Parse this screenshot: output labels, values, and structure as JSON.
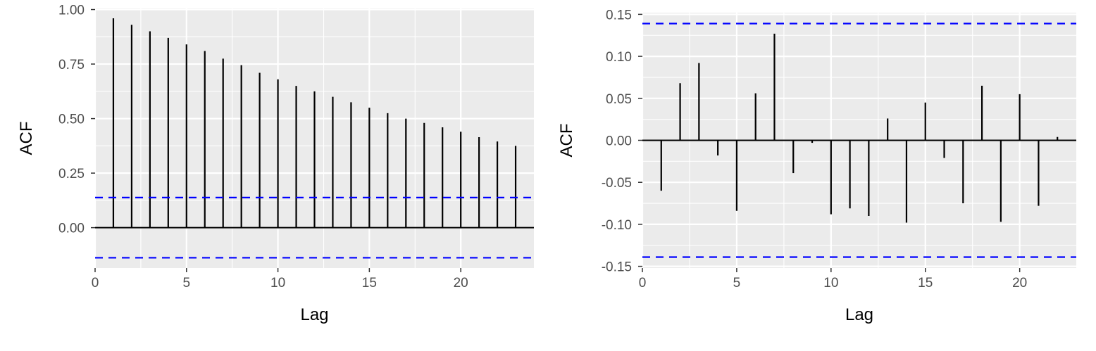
{
  "chart_data": [
    {
      "type": "bar",
      "subtype": "acf-lollipop",
      "title": "",
      "xlabel": "Lag",
      "ylabel": "ACF",
      "xlim": [
        0,
        24
      ],
      "ylim": [
        -0.185,
        1.005
      ],
      "xticks": [
        0,
        5,
        10,
        15,
        20
      ],
      "yticks": [
        0.0,
        0.25,
        0.5,
        0.75,
        1.0
      ],
      "ytick_labels": [
        "0.00",
        "0.25",
        "0.50",
        "0.75",
        "1.00"
      ],
      "confidence_bounds": [
        0.138,
        -0.138
      ],
      "series": [
        {
          "lags": [
            1,
            2,
            3,
            4,
            5,
            6,
            7,
            8,
            9,
            10,
            11,
            12,
            13,
            14,
            15,
            16,
            17,
            18,
            19,
            20,
            21,
            22,
            23
          ],
          "values": [
            0.96,
            0.93,
            0.9,
            0.87,
            0.84,
            0.81,
            0.775,
            0.745,
            0.71,
            0.68,
            0.65,
            0.625,
            0.6,
            0.575,
            0.55,
            0.525,
            0.5,
            0.48,
            0.46,
            0.44,
            0.415,
            0.395,
            0.375
          ]
        }
      ],
      "grid": true,
      "colors": {
        "panel": "#ebebeb",
        "grid": "#ffffff",
        "bars": "#000000",
        "bounds": "#0000ff"
      }
    },
    {
      "type": "bar",
      "subtype": "acf-lollipop",
      "title": "",
      "xlabel": "Lag",
      "ylabel": "ACF",
      "xlim": [
        0,
        23
      ],
      "ylim": [
        -0.152,
        0.152
      ],
      "xticks": [
        0,
        5,
        10,
        15,
        20
      ],
      "yticks": [
        -0.15,
        -0.1,
        -0.05,
        0.0,
        0.05,
        0.1,
        0.15
      ],
      "ytick_labels": [
        "-0.15",
        "-0.10",
        "-0.05",
        "0.00",
        "0.05",
        "0.10",
        "0.15"
      ],
      "confidence_bounds": [
        0.139,
        -0.139
      ],
      "series": [
        {
          "lags": [
            1,
            2,
            3,
            4,
            5,
            6,
            7,
            8,
            9,
            10,
            11,
            12,
            13,
            14,
            15,
            16,
            17,
            18,
            19,
            20,
            21,
            22
          ],
          "values": [
            -0.06,
            0.068,
            0.092,
            -0.018,
            -0.084,
            0.056,
            0.127,
            -0.039,
            -0.003,
            -0.088,
            -0.081,
            -0.09,
            0.026,
            -0.098,
            0.045,
            -0.021,
            -0.075,
            0.065,
            -0.097,
            0.055,
            -0.078,
            0.004
          ]
        }
      ],
      "grid": true,
      "colors": {
        "panel": "#ebebeb",
        "grid": "#ffffff",
        "bars": "#000000",
        "bounds": "#0000ff"
      }
    }
  ]
}
